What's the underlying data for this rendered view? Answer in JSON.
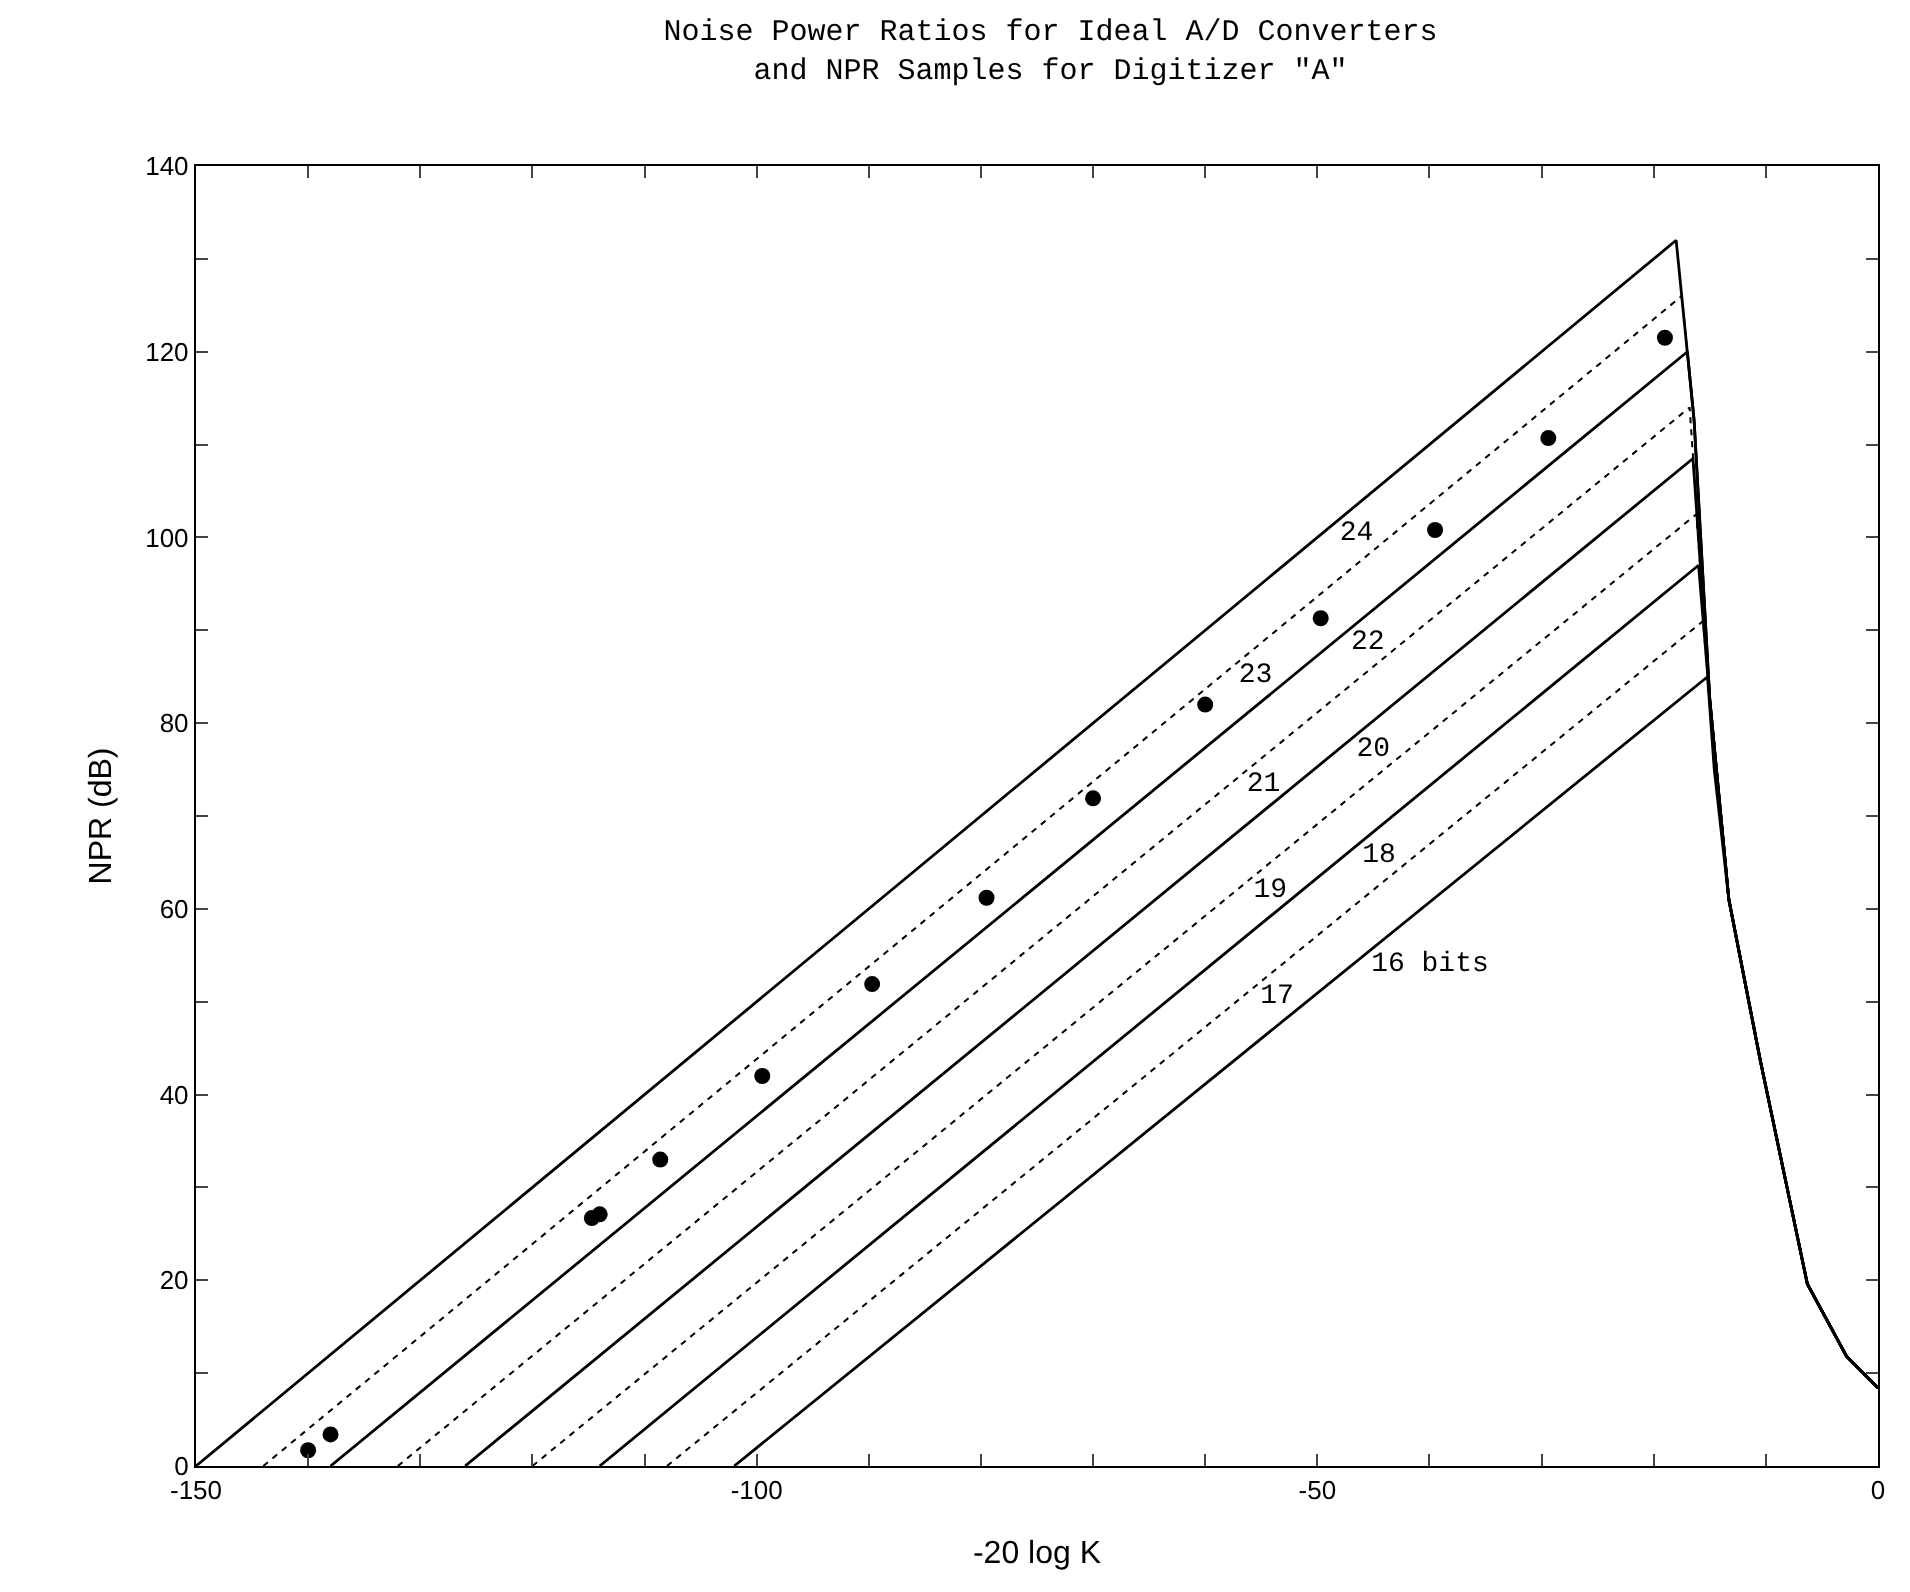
{
  "chart_data": {
    "type": "line",
    "title": "Noise Power Ratios for Ideal A/D Converters\nand NPR Samples for Digitizer \"A\"",
    "xlabel": "-20 log K",
    "ylabel": "NPR (dB)",
    "xlim": [
      -150,
      0
    ],
    "ylim": [
      0,
      140
    ],
    "xticks": [
      -150,
      {
        "value": -140,
        "label": null
      },
      {
        "value": -130,
        "label": null
      },
      {
        "value": -120,
        "label": null
      },
      {
        "value": -110,
        "label": null
      },
      -100,
      {
        "value": -90,
        "label": null
      },
      {
        "value": -80,
        "label": null
      },
      {
        "value": -70,
        "label": null
      },
      {
        "value": -60,
        "label": null
      },
      -50,
      {
        "value": -40,
        "label": null
      },
      {
        "value": -30,
        "label": null
      },
      {
        "value": -20,
        "label": null
      },
      {
        "value": -10,
        "label": null
      },
      0
    ],
    "yticks": [
      0,
      {
        "value": 10,
        "label": null
      },
      20,
      {
        "value": 30,
        "label": null
      },
      40,
      {
        "value": 50,
        "label": null
      },
      60,
      {
        "value": 70,
        "label": null
      },
      80,
      {
        "value": 90,
        "label": null
      },
      100,
      {
        "value": 110,
        "label": null
      },
      120,
      {
        "value": 130,
        "label": null
      },
      140
    ],
    "grid": false,
    "series": [
      {
        "name": "24",
        "line_style": "solid",
        "color": "#000000",
        "x": [
          -150,
          -18,
          -16.4,
          -15,
          -13.3,
          -10.5,
          -6.3,
          -2.8,
          0
        ],
        "values": [
          0,
          132,
          112.6,
          82.5,
          61,
          43.7,
          19.6,
          11.8,
          8.4
        ]
      },
      {
        "name": "23",
        "line_style": "dotted",
        "color": "#000000",
        "x": [
          -144,
          -17.5,
          -16.4,
          -15,
          -13.3,
          -10.5,
          -6.3,
          -2.8,
          0
        ],
        "values": [
          0,
          126,
          112.6,
          82.5,
          61,
          43.7,
          19.6,
          11.8,
          8.4
        ]
      },
      {
        "name": "22",
        "line_style": "solid",
        "color": "#000000",
        "x": [
          -138,
          -17,
          -16.4,
          -15,
          -13.3,
          -10.5,
          -6.3,
          -2.8,
          0
        ],
        "values": [
          0,
          120,
          112.6,
          82.5,
          61,
          43.7,
          19.6,
          11.8,
          8.4
        ]
      },
      {
        "name": "21",
        "line_style": "dotted",
        "color": "#000000",
        "x": [
          -132,
          -16.8,
          -15,
          -13.3,
          -10.5,
          -6.3,
          -2.8,
          0
        ],
        "values": [
          0,
          114,
          82.5,
          61,
          43.7,
          19.6,
          11.8,
          8.4
        ]
      },
      {
        "name": "20",
        "line_style": "solid",
        "color": "#000000",
        "x": [
          -126,
          -16.5,
          -15,
          -13.3,
          -10.5,
          -6.3,
          -2.8,
          0
        ],
        "values": [
          0,
          108.5,
          82.5,
          61,
          43.7,
          19.6,
          11.8,
          8.4
        ]
      },
      {
        "name": "19",
        "line_style": "dotted",
        "color": "#000000",
        "x": [
          -120,
          -16.2,
          -15,
          -13.3,
          -10.5,
          -6.3,
          -2.8,
          0
        ],
        "values": [
          0,
          102.5,
          82.5,
          61,
          43.7,
          19.6,
          11.8,
          8.4
        ]
      },
      {
        "name": "18",
        "line_style": "solid",
        "color": "#000000",
        "x": [
          -114,
          -16,
          -15,
          -13.3,
          -10.5,
          -6.3,
          -2.8,
          0
        ],
        "values": [
          0,
          97,
          82.5,
          61,
          43.7,
          19.6,
          11.8,
          8.4
        ]
      },
      {
        "name": "17",
        "line_style": "dotted",
        "color": "#000000",
        "x": [
          -108,
          -15.6,
          -15,
          -13.3,
          -10.5,
          -6.3,
          -2.8,
          0
        ],
        "values": [
          0,
          91,
          82.5,
          61,
          43.7,
          19.6,
          11.8,
          8.4
        ]
      },
      {
        "name": "16 bits",
        "line_style": "solid",
        "color": "#000000",
        "x": [
          -102,
          -15.2,
          -14.6,
          -13.3,
          -10.5,
          -6.3,
          -2.8,
          0
        ],
        "values": [
          0,
          85,
          75,
          61,
          43.7,
          19.6,
          11.8,
          8.4
        ]
      },
      {
        "type": "scatter",
        "marker": "circle",
        "color": "#000000",
        "x": [
          -140,
          -138,
          -114.7,
          -114,
          -108.6,
          -99.5,
          -89.7,
          -79.5,
          -70,
          -60,
          -49.7,
          -39.5,
          -29.4,
          -19
        ],
        "values": [
          1.7,
          3.4,
          26.7,
          27.1,
          33,
          42,
          51.9,
          61.2,
          71.9,
          82,
          91.3,
          100.8,
          110.7,
          121.5
        ]
      }
    ]
  }
}
